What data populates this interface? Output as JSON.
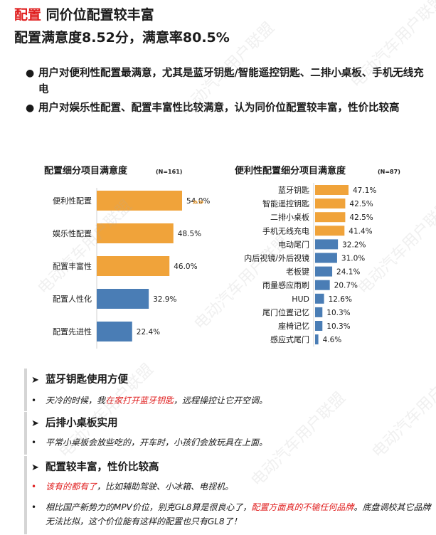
{
  "header": {
    "keyword": "配置",
    "title_rest": " 同价位配置较丰富",
    "subtitle": "配置满意度8.52分，满意率80.5%"
  },
  "bullets": [
    "用户对便利性配置最满意，尤其是蓝牙钥匙/智能遥控钥匙、二排小桌板、手机无线充电",
    "用户对娱乐性配置、配置丰富性比较满意，认为同价位配置较丰富，性价比较高"
  ],
  "bullet_symbol": "●",
  "arrow_symbol": "»»",
  "colors": {
    "orange": "#f0a33a",
    "blue": "#4a7db5",
    "red": "#e01f1f"
  },
  "chart_data": [
    {
      "type": "bar",
      "orientation": "horizontal",
      "title": "配置细分项目满意度",
      "note": "(N=161)",
      "categories": [
        "便利性配置",
        "娱乐性配置",
        "配置丰富性",
        "配置人性化",
        "配置先进性"
      ],
      "values": [
        54.0,
        48.5,
        46.0,
        32.9,
        22.4
      ],
      "value_labels": [
        "54.0%",
        "48.5%",
        "46.0%",
        "32.9%",
        "22.4%"
      ],
      "bar_colors": [
        "orange",
        "orange",
        "orange",
        "blue",
        "blue"
      ],
      "xlim": [
        0,
        60
      ]
    },
    {
      "type": "bar",
      "orientation": "horizontal",
      "title": "便利性配置细分项目满意度",
      "note": "(N=87)",
      "categories": [
        "蓝牙钥匙",
        "智能遥控钥匙",
        "二排小桌板",
        "手机无线充电",
        "电动尾门",
        "内后视镜/外后视镜",
        "老板键",
        "雨量感应雨刷",
        "HUD",
        "尾门位置记忆",
        "座椅记忆",
        "感应式尾门"
      ],
      "values": [
        47.1,
        42.5,
        42.5,
        41.4,
        32.2,
        31.0,
        24.1,
        20.7,
        12.6,
        10.3,
        10.3,
        4.6
      ],
      "value_labels": [
        "47.1%",
        "42.5%",
        "42.5%",
        "41.4%",
        "32.2%",
        "31.0%",
        "24.1%",
        "20.7%",
        "12.6%",
        "10.3%",
        "10.3%",
        "4.6%"
      ],
      "bar_colors": [
        "orange",
        "orange",
        "orange",
        "orange",
        "blue",
        "blue",
        "blue",
        "blue",
        "blue",
        "blue",
        "blue",
        "blue"
      ],
      "xlim": [
        0,
        55
      ]
    }
  ],
  "quotes": [
    {
      "heading": "蓝牙钥匙使用方便",
      "lines": [
        {
          "parts": [
            {
              "t": "天冷的时候，我",
              "c": ""
            },
            {
              "t": "在家打开蓝牙钥匙",
              "c": "red"
            },
            {
              "t": "，远程操控让它开空调。",
              "c": ""
            }
          ]
        }
      ]
    },
    {
      "heading": "后排小桌板实用",
      "lines": [
        {
          "parts": [
            {
              "t": "平常小桌板会放些吃的，开车时，小孩们会放玩具在上面。",
              "c": ""
            }
          ]
        }
      ]
    },
    {
      "heading": "配置较丰富，性价比较高",
      "lines": [
        {
          "bullet_red": true,
          "parts": [
            {
              "t": "该有的都有了",
              "c": "red"
            },
            {
              "t": "，比如辅助驾驶、小冰箱、电视机。",
              "c": ""
            }
          ]
        },
        {
          "parts": [
            {
              "t": "相比国产新势力的MPV价位，别克GL8算是很良心了，",
              "c": ""
            },
            {
              "t": "配置方面真的不输任何品牌",
              "c": "red"
            },
            {
              "t": "。底盘调校其它品牌无法比拟，这个价位能有这样的配置也只有GL8了！",
              "c": ""
            }
          ]
        }
      ]
    }
  ],
  "quote_arrow": "➤",
  "quote_bullet": "•",
  "watermark_text": "电动汽车用户联盟"
}
